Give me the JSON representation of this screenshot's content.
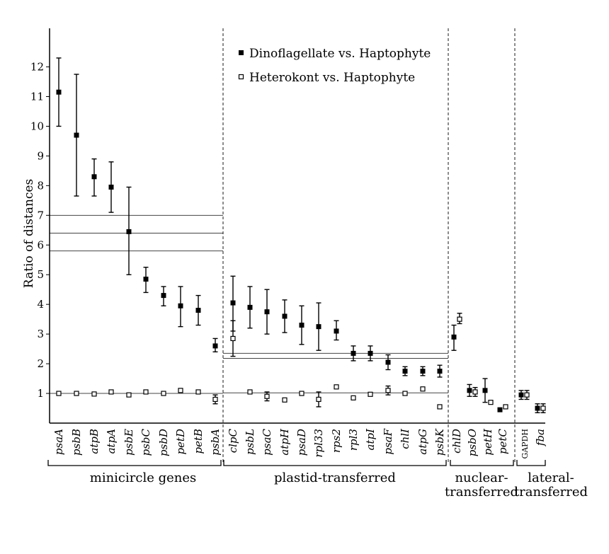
{
  "chart_data": {
    "type": "scatter",
    "ylabel": "Ratio of distances",
    "ylim": [
      0,
      13.3
    ],
    "yticks": [
      1,
      2,
      3,
      4,
      5,
      6,
      7,
      8,
      9,
      10,
      11,
      12
    ],
    "legend": {
      "placement": "top-center",
      "entries": [
        "Dinoflagellate vs. Haptophyte",
        "Heterokont vs. Haptophyte"
      ]
    },
    "categories": [
      {
        "label": "psaA",
        "italic": true
      },
      {
        "label": "psbB",
        "italic": true
      },
      {
        "label": "atpB",
        "italic": true
      },
      {
        "label": "atpA",
        "italic": true
      },
      {
        "label": "psbE",
        "italic": true
      },
      {
        "label": "psbC",
        "italic": true
      },
      {
        "label": "psbD",
        "italic": true
      },
      {
        "label": "petD",
        "italic": true
      },
      {
        "label": "petB",
        "italic": true
      },
      {
        "label": "psbA",
        "italic": true
      },
      {
        "label": "clpC",
        "italic": true
      },
      {
        "label": "psbL",
        "italic": true
      },
      {
        "label": "psaC",
        "italic": true
      },
      {
        "label": "atpH",
        "italic": true
      },
      {
        "label": "psaD",
        "italic": true
      },
      {
        "label": "rpl33",
        "italic": true
      },
      {
        "label": "rps2",
        "italic": true
      },
      {
        "label": "rpl3",
        "italic": true
      },
      {
        "label": "atpI",
        "italic": true
      },
      {
        "label": "psaF",
        "italic": true
      },
      {
        "label": "chlI",
        "italic": true
      },
      {
        "label": "atpG",
        "italic": true
      },
      {
        "label": "psbK",
        "italic": true
      },
      {
        "label": "chlD",
        "italic": true
      },
      {
        "label": "psbO",
        "italic": true
      },
      {
        "label": "petH",
        "italic": true
      },
      {
        "label": "petC",
        "italic": true
      },
      {
        "label": "GAPDH",
        "italic": false
      },
      {
        "label": "fba",
        "italic": true
      }
    ],
    "series": [
      {
        "name": "Dinoflagellate vs. Haptophyte",
        "marker": "filled-square",
        "points": [
          {
            "y": 11.15,
            "lo": 10.0,
            "hi": 12.3
          },
          {
            "y": 9.7,
            "lo": 7.65,
            "hi": 11.75
          },
          {
            "y": 8.3,
            "lo": 7.65,
            "hi": 8.9
          },
          {
            "y": 7.95,
            "lo": 7.1,
            "hi": 8.8
          },
          {
            "y": 6.45,
            "lo": 5.0,
            "hi": 7.95
          },
          {
            "y": 4.85,
            "lo": 4.4,
            "hi": 5.25
          },
          {
            "y": 4.3,
            "lo": 3.95,
            "hi": 4.6
          },
          {
            "y": 3.95,
            "lo": 3.25,
            "hi": 4.6
          },
          {
            "y": 3.8,
            "lo": 3.3,
            "hi": 4.3
          },
          {
            "y": 2.6,
            "lo": 2.4,
            "hi": 2.85
          },
          {
            "y": 4.05,
            "lo": 3.1,
            "hi": 4.95
          },
          {
            "y": 3.9,
            "lo": 3.2,
            "hi": 4.6
          },
          {
            "y": 3.75,
            "lo": 3.0,
            "hi": 4.5
          },
          {
            "y": 3.6,
            "lo": 3.05,
            "hi": 4.15
          },
          {
            "y": 3.3,
            "lo": 2.65,
            "hi": 3.95
          },
          {
            "y": 3.25,
            "lo": 2.45,
            "hi": 4.05
          },
          {
            "y": 3.1,
            "lo": 2.8,
            "hi": 3.45
          },
          {
            "y": 2.35,
            "lo": 2.1,
            "hi": 2.6
          },
          {
            "y": 2.35,
            "lo": 2.1,
            "hi": 2.6
          },
          {
            "y": 2.05,
            "lo": 1.8,
            "hi": 2.3
          },
          {
            "y": 1.75,
            "lo": 1.6,
            "hi": 1.9
          },
          {
            "y": 1.75,
            "lo": 1.6,
            "hi": 1.9
          },
          {
            "y": 1.75,
            "lo": 1.55,
            "hi": 1.95
          },
          {
            "y": 2.9,
            "lo": 2.45,
            "hi": 3.3
          },
          {
            "y": 1.1,
            "lo": 0.9,
            "hi": 1.3
          },
          {
            "y": 1.1,
            "lo": 0.7,
            "hi": 1.5
          },
          {
            "y": 0.45,
            "lo": 0.45,
            "hi": 0.45
          },
          {
            "y": 0.95,
            "lo": 0.8,
            "hi": 1.1
          },
          {
            "y": 0.5,
            "lo": 0.35,
            "hi": 0.65
          }
        ]
      },
      {
        "name": "Heterokont vs. Haptophyte",
        "marker": "open-square",
        "points": [
          {
            "y": 1.0,
            "lo": 1.0,
            "hi": 1.0
          },
          {
            "y": 1.0,
            "lo": 1.0,
            "hi": 1.0
          },
          {
            "y": 0.98,
            "lo": 0.98,
            "hi": 0.98
          },
          {
            "y": 1.05,
            "lo": 1.05,
            "hi": 1.05
          },
          {
            "y": 0.95,
            "lo": 0.95,
            "hi": 0.95
          },
          {
            "y": 1.05,
            "lo": 1.05,
            "hi": 1.05
          },
          {
            "y": 1.0,
            "lo": 1.0,
            "hi": 1.0
          },
          {
            "y": 1.1,
            "lo": 1.1,
            "hi": 1.1
          },
          {
            "y": 1.05,
            "lo": 1.05,
            "hi": 1.05
          },
          {
            "y": 0.8,
            "lo": 0.65,
            "hi": 0.95
          },
          {
            "y": 2.85,
            "lo": 2.25,
            "hi": 3.45
          },
          {
            "y": 1.05,
            "lo": 1.05,
            "hi": 1.05
          },
          {
            "y": 0.9,
            "lo": 0.75,
            "hi": 1.05
          },
          {
            "y": 0.78,
            "lo": 0.78,
            "hi": 0.78
          },
          {
            "y": 1.0,
            "lo": 1.0,
            "hi": 1.0
          },
          {
            "y": 0.8,
            "lo": 0.55,
            "hi": 1.05
          },
          {
            "y": 1.22,
            "lo": 1.22,
            "hi": 1.22
          },
          {
            "y": 0.85,
            "lo": 0.85,
            "hi": 0.85
          },
          {
            "y": 0.97,
            "lo": 0.97,
            "hi": 0.97
          },
          {
            "y": 1.1,
            "lo": 0.95,
            "hi": 1.25
          },
          {
            "y": 1.0,
            "lo": 1.0,
            "hi": 1.0
          },
          {
            "y": 1.15,
            "lo": 1.15,
            "hi": 1.15
          },
          {
            "y": 0.55,
            "lo": 0.55,
            "hi": 0.55
          },
          {
            "y": 3.5,
            "lo": 3.35,
            "hi": 3.7
          },
          {
            "y": 1.05,
            "lo": 0.9,
            "hi": 1.2
          },
          {
            "y": 0.7,
            "lo": 0.7,
            "hi": 0.7
          },
          {
            "y": 0.55,
            "lo": 0.55,
            "hi": 0.55
          },
          {
            "y": 0.95,
            "lo": 0.8,
            "hi": 1.1
          },
          {
            "y": 0.5,
            "lo": 0.35,
            "hi": 0.65
          }
        ]
      }
    ],
    "reference_lines": [
      {
        "group": 0,
        "y": 1.0
      },
      {
        "group": 0,
        "y": 5.8
      },
      {
        "group": 0,
        "y": 6.4
      },
      {
        "group": 0,
        "y": 7.0
      },
      {
        "group": 1,
        "y": 1.02
      },
      {
        "group": 1,
        "y": 2.18
      },
      {
        "group": 1,
        "y": 2.35
      }
    ],
    "groups": [
      {
        "label_lines": [
          "minicircle genes"
        ],
        "start": 0,
        "end": 9
      },
      {
        "label_lines": [
          "plastid-transferred"
        ],
        "start": 10,
        "end": 22
      },
      {
        "label_lines": [
          "nuclear-",
          "transferred"
        ],
        "start": 23,
        "end": 26
      },
      {
        "label_lines": [
          "lateral-",
          "transferred"
        ],
        "start": 27,
        "end": 28
      }
    ]
  }
}
